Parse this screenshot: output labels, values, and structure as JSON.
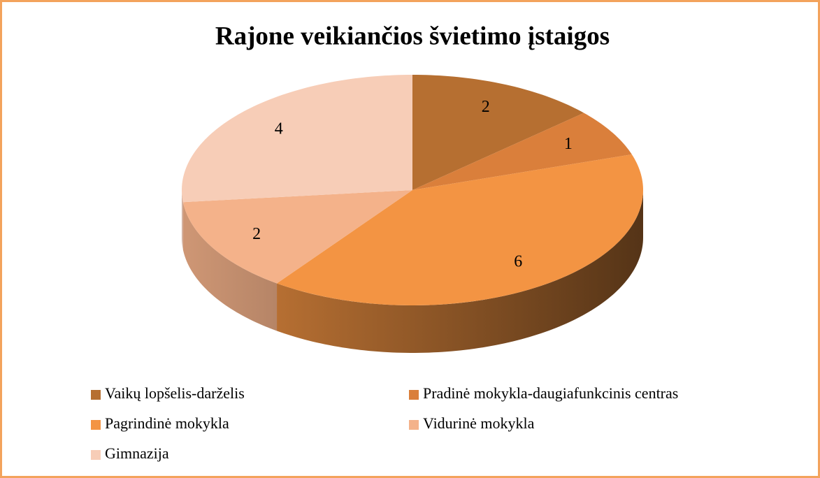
{
  "chart_data": {
    "type": "pie",
    "title": "Rajone veikiančios švietimo įstaigos",
    "categories": [
      "Vaikų lopšelis-darželis",
      "Pradinė mokykla-daugiafunkcinis centras",
      "Pagrindinė mokykla",
      "Vidurinė mokykla",
      "Gimnazija"
    ],
    "values": [
      2,
      1,
      6,
      2,
      4
    ],
    "colors": [
      "#b66f31",
      "#da7f3b",
      "#f39443",
      "#f4b28a",
      "#f7cdb7"
    ],
    "legend": "bottom"
  }
}
